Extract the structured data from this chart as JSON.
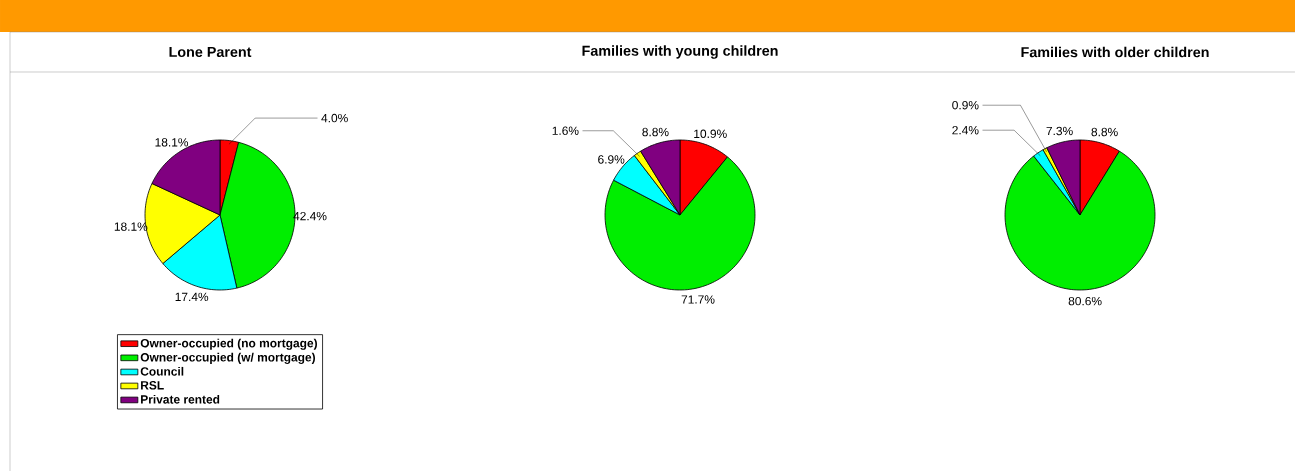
{
  "chart_data": [
    {
      "type": "pie",
      "title": "Lone Parent",
      "categories": [
        "Owner-occupied (no mortgage)",
        "Owner-occupied (w/ mortgage)",
        "Council",
        "RSL",
        "Private rented"
      ],
      "values": [
        4.0,
        42.4,
        17.4,
        18.1,
        18.1
      ],
      "value_labels": [
        "4.0%",
        "42.4%",
        "17.4%",
        "18.1%",
        "18.1%"
      ],
      "colors": [
        "#ff0000",
        "#00ee00",
        "#00ffff",
        "#ffff00",
        "#800080"
      ],
      "legend": "bottom"
    },
    {
      "type": "pie",
      "title": "Families with young children",
      "categories": [
        null,
        null,
        null,
        null,
        null
      ],
      "values": [
        10.9,
        71.7,
        6.9,
        1.6,
        8.8
      ],
      "value_labels": [
        "10.9%",
        "71.7%",
        "6.9%",
        "1.6%",
        "8.8%"
      ],
      "colors": [
        "#ff0000",
        "#00ee00",
        "#00ffff",
        "#ffff00",
        "#800080"
      ]
    },
    {
      "type": "pie",
      "title": "Families with older children",
      "categories": [
        null,
        null,
        null,
        null,
        null
      ],
      "values": [
        8.8,
        80.6,
        2.4,
        0.9,
        7.3
      ],
      "value_labels": [
        "8.8%",
        "80.6%",
        "2.4%",
        "0.9%",
        "7.3%"
      ],
      "colors": [
        "#ff0000",
        "#00ee00",
        "#00ffff",
        "#ffff00",
        "#800080"
      ]
    }
  ]
}
